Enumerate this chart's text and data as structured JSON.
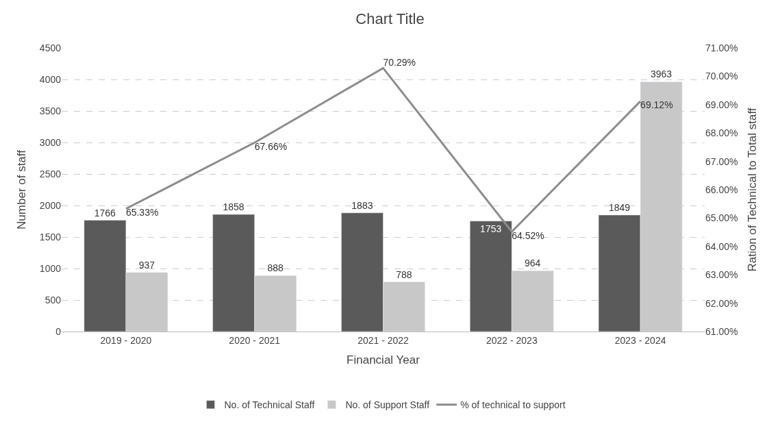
{
  "chart_data": {
    "type": "bar",
    "title": "Chart Title",
    "xlabel": "Financial Year",
    "ylabel": "Number of staff",
    "y2label": "Ration of Technical to Total staff",
    "categories": [
      "2019 - 2020",
      "2020 - 2021",
      "2021 - 2022",
      "2022 - 2023",
      "2023 - 2024"
    ],
    "series": [
      {
        "name": "No. of Technical Staff",
        "color": "#5a5a5a",
        "values": [
          1766,
          1858,
          1883,
          1753,
          1849
        ],
        "value_labels": [
          "1766",
          "1858",
          "1883",
          "1753",
          "1849"
        ]
      },
      {
        "name": "No. of Support Staff",
        "color": "#c8c8c8",
        "values": [
          937,
          888,
          788,
          964,
          3963
        ],
        "value_labels": [
          "937",
          "888",
          "788",
          "964",
          "3963"
        ]
      },
      {
        "name": "% of technical to support",
        "type": "line",
        "axis": "y2",
        "color": "#8c8c8c",
        "values": [
          65.33,
          67.66,
          70.29,
          64.52,
          69.12
        ],
        "value_labels": [
          "65.33%",
          "67.66%",
          "70.29%",
          "64.52%",
          "69.12%"
        ]
      }
    ],
    "ylim": [
      0,
      4500
    ],
    "yticks": [
      0,
      500,
      1000,
      1500,
      2000,
      2500,
      3000,
      3500,
      4000,
      4500
    ],
    "y2lim": [
      61,
      71
    ],
    "y2ticks": [
      {
        "value": 61,
        "label": "61.00%"
      },
      {
        "value": 62,
        "label": "62.00%"
      },
      {
        "value": 63,
        "label": "63.00%"
      },
      {
        "value": 64,
        "label": "64.00%"
      },
      {
        "value": 65,
        "label": "65.00%"
      },
      {
        "value": 66,
        "label": "66.00%"
      },
      {
        "value": 67,
        "label": "67.00%"
      },
      {
        "value": 68,
        "label": "68.00%"
      },
      {
        "value": 69,
        "label": "69.00%"
      },
      {
        "value": 70,
        "label": "70.00%"
      },
      {
        "value": 71,
        "label": "71.00%"
      }
    ],
    "grid": "y",
    "legend": "bottom",
    "marker": "none",
    "line_style": "solid"
  }
}
